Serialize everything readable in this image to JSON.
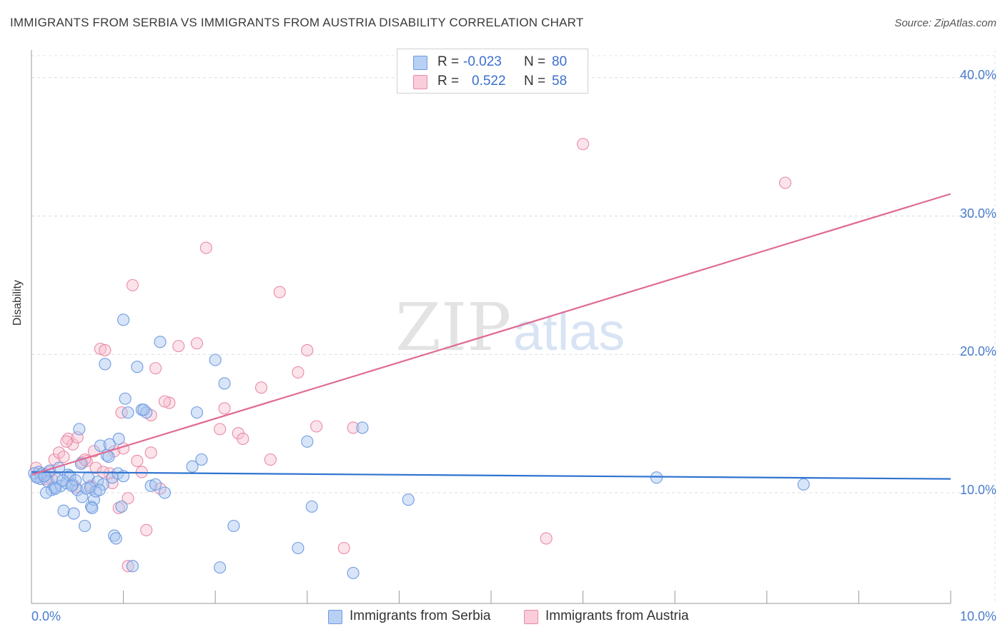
{
  "chart_data": {
    "type": "scatter",
    "title": "IMMIGRANTS FROM SERBIA VS IMMIGRANTS FROM AUSTRIA DISABILITY CORRELATION CHART",
    "source": "Source: ZipAtlas.com",
    "ylabel": "Disability",
    "xlim": [
      0,
      10
    ],
    "ylim": [
      2,
      42
    ],
    "y_ticks": [
      {
        "value": 10,
        "label": "10.0%"
      },
      {
        "value": 20,
        "label": "20.0%"
      },
      {
        "value": 30,
        "label": "30.0%"
      },
      {
        "value": 40,
        "label": "40.0%"
      }
    ],
    "x_ticks": [
      {
        "value": 0,
        "label": "0.0%"
      },
      {
        "value": 10,
        "label": "10.0%"
      }
    ],
    "watermark": {
      "zip": "ZIP",
      "atlas": "atlas"
    },
    "series": [
      {
        "name": "Immigrants from Serbia",
        "color": "#6f9be0",
        "fill": "#a9c5f0",
        "line_color": "#2f74d0",
        "r_label": "R =",
        "r_value": "-0.023",
        "n_label": "N =",
        "n_value": "80",
        "trend": {
          "x": [
            0,
            10
          ],
          "y": [
            11.5,
            11.0
          ]
        },
        "points": [
          [
            0.05,
            11.2
          ],
          [
            0.08,
            11.5
          ],
          [
            0.1,
            11.0
          ],
          [
            0.12,
            11.4
          ],
          [
            0.15,
            11.3
          ],
          [
            0.18,
            10.8
          ],
          [
            0.2,
            11.6
          ],
          [
            0.22,
            10.2
          ],
          [
            0.25,
            10.4
          ],
          [
            0.28,
            11.0
          ],
          [
            0.3,
            11.8
          ],
          [
            0.32,
            10.5
          ],
          [
            0.35,
            8.7
          ],
          [
            0.38,
            10.7
          ],
          [
            0.4,
            11.3
          ],
          [
            0.42,
            11.2
          ],
          [
            0.45,
            10.6
          ],
          [
            0.48,
            10.9
          ],
          [
            0.5,
            10.2
          ],
          [
            0.52,
            14.6
          ],
          [
            0.55,
            9.7
          ],
          [
            0.58,
            7.6
          ],
          [
            0.6,
            10.3
          ],
          [
            0.62,
            11.1
          ],
          [
            0.65,
            9.0
          ],
          [
            0.68,
            9.5
          ],
          [
            0.7,
            10.1
          ],
          [
            0.72,
            10.8
          ],
          [
            0.75,
            13.4
          ],
          [
            0.78,
            10.6
          ],
          [
            0.8,
            19.3
          ],
          [
            0.82,
            12.7
          ],
          [
            0.85,
            13.5
          ],
          [
            0.88,
            11.1
          ],
          [
            0.9,
            6.9
          ],
          [
            0.92,
            6.7
          ],
          [
            0.95,
            13.9
          ],
          [
            0.98,
            9.0
          ],
          [
            1.0,
            22.5
          ],
          [
            1.02,
            16.8
          ],
          [
            1.05,
            15.8
          ],
          [
            1.1,
            4.7
          ],
          [
            1.15,
            19.1
          ],
          [
            1.2,
            16.0
          ],
          [
            1.25,
            15.8
          ],
          [
            1.3,
            10.5
          ],
          [
            1.35,
            10.6
          ],
          [
            1.4,
            20.9
          ],
          [
            1.45,
            10.0
          ],
          [
            1.75,
            11.9
          ],
          [
            1.8,
            15.8
          ],
          [
            1.85,
            12.4
          ],
          [
            2.0,
            19.6
          ],
          [
            2.05,
            4.6
          ],
          [
            2.1,
            17.9
          ],
          [
            2.2,
            7.6
          ],
          [
            2.9,
            6.0
          ],
          [
            3.0,
            13.7
          ],
          [
            3.05,
            9.0
          ],
          [
            3.5,
            4.2
          ],
          [
            3.6,
            14.7
          ],
          [
            4.1,
            9.5
          ],
          [
            6.8,
            11.1
          ],
          [
            8.4,
            10.6
          ],
          [
            0.03,
            11.4
          ],
          [
            0.06,
            11.1
          ],
          [
            0.14,
            11.2
          ],
          [
            0.26,
            10.3
          ],
          [
            0.34,
            10.9
          ],
          [
            0.44,
            10.5
          ],
          [
            0.54,
            12.1
          ],
          [
            0.64,
            10.4
          ],
          [
            0.74,
            10.2
          ],
          [
            0.84,
            12.6
          ],
          [
            0.94,
            11.4
          ],
          [
            1.0,
            11.2
          ],
          [
            1.22,
            16.0
          ],
          [
            0.46,
            8.5
          ],
          [
            0.66,
            8.9
          ],
          [
            0.16,
            10.0
          ]
        ]
      },
      {
        "name": "Immigrants from Austria",
        "color": "#e98aa8",
        "fill": "#f6c0d0",
        "line_color": "#e06a93",
        "r_label": "R =",
        "r_value": "0.522",
        "n_label": "N =",
        "n_value": "58",
        "trend": {
          "x": [
            0,
            10
          ],
          "y": [
            11.3,
            31.6
          ]
        },
        "points": [
          [
            0.05,
            11.8
          ],
          [
            0.1,
            11.3
          ],
          [
            0.15,
            11.0
          ],
          [
            0.2,
            11.5
          ],
          [
            0.25,
            12.4
          ],
          [
            0.3,
            12.9
          ],
          [
            0.35,
            12.6
          ],
          [
            0.4,
            13.9
          ],
          [
            0.45,
            13.5
          ],
          [
            0.5,
            14.0
          ],
          [
            0.55,
            12.2
          ],
          [
            0.6,
            12.3
          ],
          [
            0.65,
            10.5
          ],
          [
            0.7,
            11.8
          ],
          [
            0.75,
            20.4
          ],
          [
            0.8,
            20.3
          ],
          [
            0.85,
            11.4
          ],
          [
            0.9,
            13.0
          ],
          [
            0.95,
            8.9
          ],
          [
            1.0,
            13.2
          ],
          [
            1.05,
            9.6
          ],
          [
            1.1,
            25.0
          ],
          [
            1.15,
            12.3
          ],
          [
            1.2,
            11.5
          ],
          [
            1.25,
            7.3
          ],
          [
            1.3,
            12.9
          ],
          [
            1.35,
            19.0
          ],
          [
            1.4,
            10.3
          ],
          [
            1.5,
            16.5
          ],
          [
            1.6,
            20.6
          ],
          [
            1.8,
            20.8
          ],
          [
            1.9,
            27.7
          ],
          [
            2.05,
            14.6
          ],
          [
            2.1,
            16.1
          ],
          [
            2.25,
            14.3
          ],
          [
            2.3,
            13.9
          ],
          [
            2.5,
            17.6
          ],
          [
            2.6,
            12.4
          ],
          [
            2.7,
            24.5
          ],
          [
            2.9,
            18.7
          ],
          [
            3.0,
            20.3
          ],
          [
            3.1,
            14.8
          ],
          [
            3.4,
            6.0
          ],
          [
            3.5,
            14.7
          ],
          [
            5.6,
            6.7
          ],
          [
            6.0,
            35.2
          ],
          [
            8.2,
            32.4
          ],
          [
            0.38,
            13.7
          ],
          [
            0.58,
            12.4
          ],
          [
            0.68,
            13.0
          ],
          [
            0.98,
            15.8
          ],
          [
            1.45,
            16.6
          ],
          [
            0.22,
            11.0
          ],
          [
            0.48,
            10.4
          ],
          [
            0.78,
            11.5
          ],
          [
            0.88,
            10.7
          ],
          [
            1.3,
            15.6
          ],
          [
            1.05,
            4.7
          ]
        ]
      }
    ]
  }
}
